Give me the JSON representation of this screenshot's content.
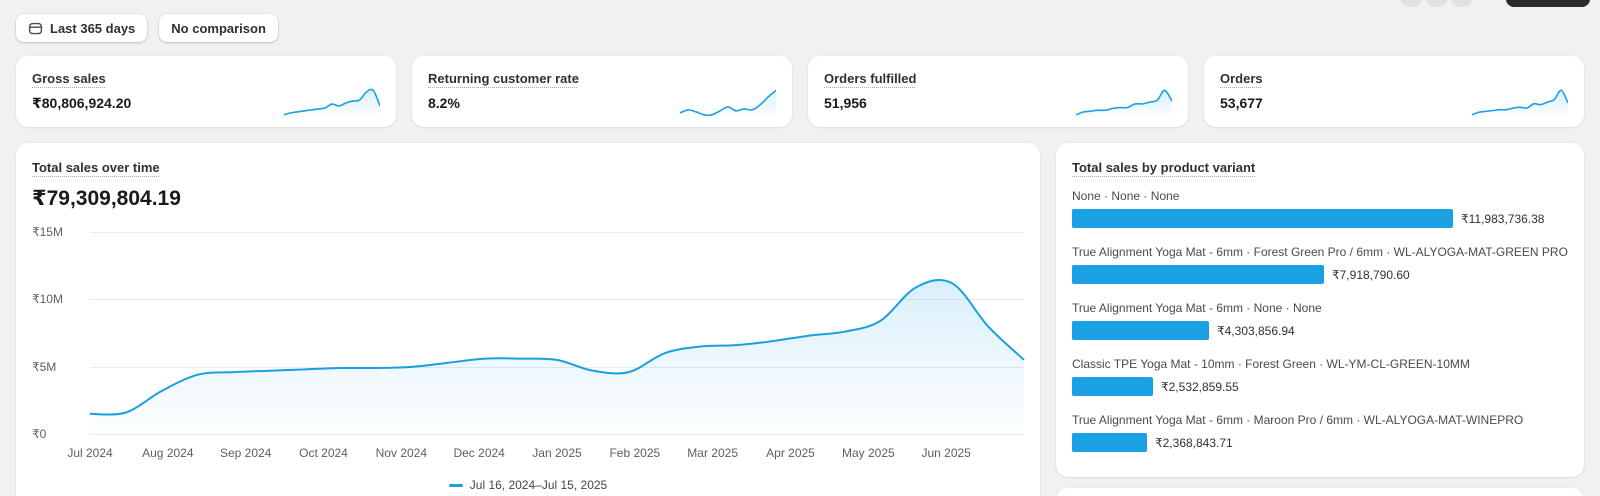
{
  "toolbar": {
    "date_range_label": "Last 365 days",
    "comparison_label": "No comparison"
  },
  "kpis": [
    {
      "label": "Gross sales",
      "value": "₹80,806,924.20",
      "spark": [
        1.8,
        2.0,
        2.1,
        2.2,
        2.3,
        2.4,
        2.5,
        2.9,
        2.7,
        3.0,
        3.2,
        3.3,
        4.1,
        4.3,
        2.7
      ]
    },
    {
      "label": "Returning customer rate",
      "value": "8.2%",
      "spark": [
        2.3,
        2.6,
        2.4,
        2.1,
        2.1,
        2.5,
        2.9,
        2.5,
        2.7,
        2.6,
        3.1,
        3.9,
        4.6
      ]
    },
    {
      "label": "Orders fulfilled",
      "value": "51,956",
      "spark": [
        1.7,
        2.0,
        2.1,
        2.2,
        2.2,
        2.4,
        2.5,
        2.5,
        2.9,
        2.9,
        3.1,
        3.3,
        4.4,
        3.2
      ]
    },
    {
      "label": "Orders",
      "value": "53,677",
      "spark": [
        1.6,
        1.9,
        2.0,
        2.1,
        2.2,
        2.2,
        2.4,
        2.5,
        2.4,
        2.9,
        2.8,
        3.1,
        3.4,
        4.5,
        3.0
      ]
    }
  ],
  "total_sales": {
    "title": "Total sales over time",
    "value": "₹79,309,804.19",
    "legend": "Jul 16, 2024–Jul 15, 2025"
  },
  "variant_panel": {
    "title": "Total sales by product variant"
  },
  "chart_data": [
    {
      "type": "line",
      "title": "Total sales over time",
      "unit": "₹ millions",
      "ylim": [
        0,
        15
      ],
      "y_tick_labels": [
        "₹15M",
        "₹10M",
        "₹5M",
        "₹0"
      ],
      "x_tick_labels": [
        "Jul 2024",
        "Aug 2024",
        "Sep 2024",
        "Oct 2024",
        "Nov 2024",
        "Dec 2024",
        "Jan 2025",
        "Feb 2025",
        "Mar 2025",
        "Apr 2025",
        "May 2025",
        "Jun 2025"
      ],
      "grid": true,
      "legend_position": "bottom",
      "series": [
        {
          "name": "Jul 16, 2024–Jul 15, 2025",
          "values": [
            1.5,
            1.6,
            3.2,
            4.4,
            4.6,
            4.7,
            4.8,
            4.9,
            4.9,
            5.0,
            5.3,
            5.6,
            5.6,
            5.5,
            4.7,
            4.6,
            6.0,
            6.5,
            6.6,
            6.9,
            7.3,
            7.6,
            8.4,
            10.9,
            11.2,
            8.0,
            5.5
          ]
        }
      ]
    },
    {
      "type": "bar",
      "orientation": "horizontal",
      "title": "Total sales by product variant",
      "categories": [
        "None · None · None",
        "True Alignment Yoga Mat - 6mm · Forest Green Pro / 6mm · WL-ALYOGA-MAT-GREEN PRO",
        "True Alignment Yoga Mat - 6mm · None · None",
        "Classic TPE Yoga Mat - 10mm · Forest Green · WL-YM-CL-GREEN-10MM",
        "True Alignment Yoga Mat - 6mm · Maroon Pro / 6mm · WL-ALYOGA-MAT-WINEPRO"
      ],
      "values": [
        11983736.38,
        7918790.6,
        4303856.94,
        2532859.55,
        2368843.71
      ],
      "value_labels": [
        "₹11,983,736.38",
        "₹7,918,790.60",
        "₹4,303,856.94",
        "₹2,532,859.55",
        "₹2,368,843.71"
      ]
    }
  ],
  "colors": {
    "accent_blue": "#1aa0e3",
    "background": "#f1f1f1",
    "card": "#ffffff"
  }
}
